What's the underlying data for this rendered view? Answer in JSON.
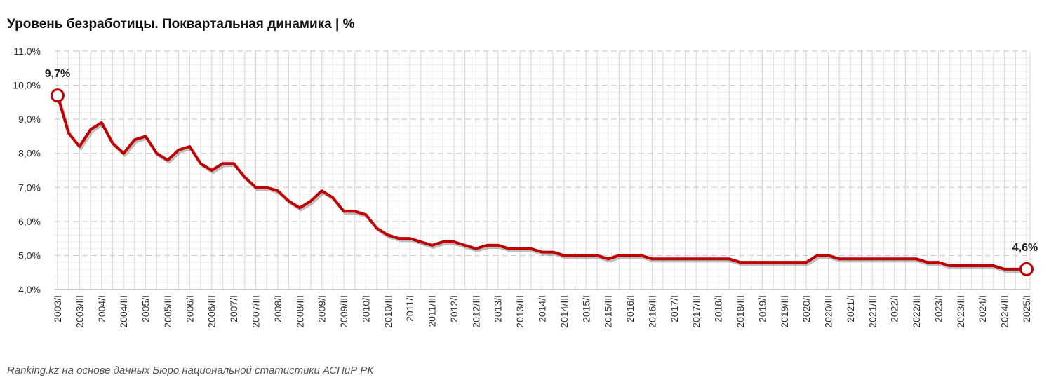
{
  "chart_data": {
    "type": "line",
    "title": "Уровень безработицы. Поквартальная динамика | %",
    "source": "Ranking.kz на основе данных Бюро национальной статистики АСПиР РК",
    "xlabel": "",
    "ylabel": "",
    "ylim": [
      4,
      11
    ],
    "yticks": [
      "4,0%",
      "5,0%",
      "6,0%",
      "7,0%",
      "8,0%",
      "9,0%",
      "10,0%",
      "11,0%"
    ],
    "start_year": 2003,
    "quarters": [
      "I",
      "II",
      "III",
      "IV"
    ],
    "series": [
      {
        "name": "Уровень безработицы",
        "color": "#c00000",
        "values": [
          9.7,
          8.6,
          8.2,
          8.7,
          8.9,
          8.3,
          8.0,
          8.4,
          8.5,
          8.0,
          7.8,
          8.1,
          8.2,
          7.7,
          7.5,
          7.7,
          7.7,
          7.3,
          7.0,
          7.0,
          6.9,
          6.6,
          6.4,
          6.6,
          6.9,
          6.7,
          6.3,
          6.3,
          6.2,
          5.8,
          5.6,
          5.5,
          5.5,
          5.4,
          5.3,
          5.4,
          5.4,
          5.3,
          5.2,
          5.3,
          5.3,
          5.2,
          5.2,
          5.2,
          5.1,
          5.1,
          5.0,
          5.0,
          5.0,
          5.0,
          4.9,
          5.0,
          5.0,
          5.0,
          4.9,
          4.9,
          4.9,
          4.9,
          4.9,
          4.9,
          4.9,
          4.9,
          4.8,
          4.8,
          4.8,
          4.8,
          4.8,
          4.8,
          4.8,
          5.0,
          5.0,
          4.9,
          4.9,
          4.9,
          4.9,
          4.9,
          4.9,
          4.9,
          4.9,
          4.8,
          4.8,
          4.7,
          4.7,
          4.7,
          4.7,
          4.7,
          4.6,
          4.6,
          4.6
        ]
      }
    ],
    "annotations": [
      {
        "index": 0,
        "label": "9,7%"
      },
      {
        "index": 88,
        "label": "4,6%"
      }
    ],
    "grid": true,
    "legend": "none"
  }
}
